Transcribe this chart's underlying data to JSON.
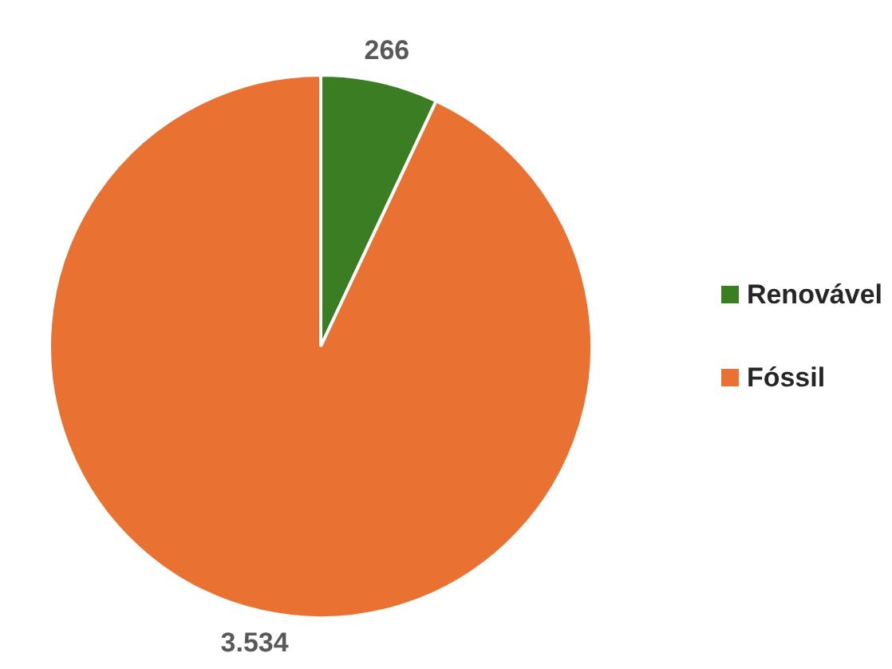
{
  "chart_data": {
    "type": "pie",
    "categories": [
      "Renovável",
      "Fóssil"
    ],
    "values": [
      266,
      3534
    ],
    "colors": [
      "#3a7d22",
      "#e97132"
    ],
    "value_labels": [
      "266",
      "3.534"
    ],
    "legend": "right"
  }
}
